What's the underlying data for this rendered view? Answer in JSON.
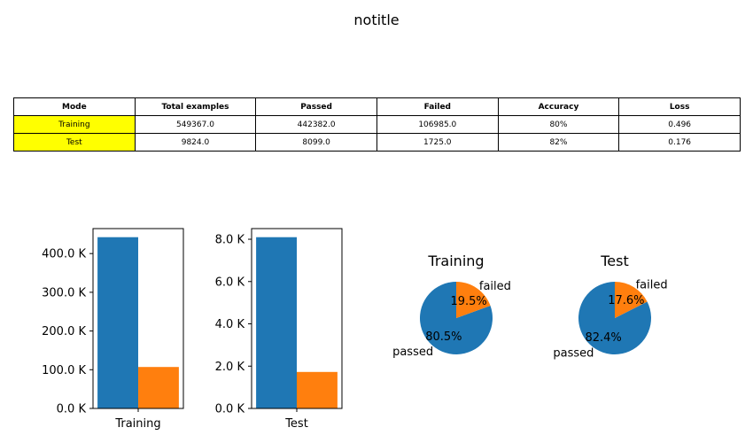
{
  "title": "notitle",
  "table": {
    "headers": [
      "Mode",
      "Total examples",
      "Passed",
      "Failed",
      "Accuracy",
      "Loss"
    ],
    "rows": [
      [
        "Training",
        "549367.0",
        "442382.0",
        "106985.0",
        "80%",
        "0.496"
      ],
      [
        "Test",
        "9824.0",
        "8099.0",
        "1725.0",
        "82%",
        "0.176"
      ]
    ]
  },
  "colors": {
    "passed": "#1f77b4",
    "failed": "#ff7f0e",
    "mode_highlight": "#ffff00"
  },
  "chart_data": [
    {
      "type": "bar",
      "categories": [
        "Training"
      ],
      "series": [
        {
          "values": [
            442382
          ],
          "color": "#1f77b4"
        },
        {
          "values": [
            106985
          ],
          "color": "#ff7f0e"
        }
      ],
      "ylim": [
        0,
        464501
      ],
      "yticks": [
        0,
        100000,
        200000,
        300000,
        400000
      ],
      "ytick_labels": [
        "0.0 K",
        "100.0 K",
        "200.0 K",
        "300.0 K",
        "400.0 K"
      ],
      "grid": false
    },
    {
      "type": "bar",
      "categories": [
        "Test"
      ],
      "series": [
        {
          "values": [
            8099
          ],
          "color": "#1f77b4"
        },
        {
          "values": [
            1725
          ],
          "color": "#ff7f0e"
        }
      ],
      "ylim": [
        0,
        8504
      ],
      "yticks": [
        0,
        2000,
        4000,
        6000,
        8000
      ],
      "ytick_labels": [
        "0.0 K",
        "2.0 K",
        "4.0 K",
        "6.0 K",
        "8.0 K"
      ],
      "grid": false
    },
    {
      "type": "pie",
      "title": "Training",
      "labels": [
        "passed",
        "failed"
      ],
      "values": [
        442382,
        106985
      ],
      "pct_labels": [
        "80.5%",
        "19.5%"
      ],
      "colors": [
        "#1f77b4",
        "#ff7f0e"
      ]
    },
    {
      "type": "pie",
      "title": "Test",
      "labels": [
        "passed",
        "failed"
      ],
      "values": [
        8099,
        1725
      ],
      "pct_labels": [
        "82.4%",
        "17.6%"
      ],
      "colors": [
        "#1f77b4",
        "#ff7f0e"
      ]
    }
  ]
}
